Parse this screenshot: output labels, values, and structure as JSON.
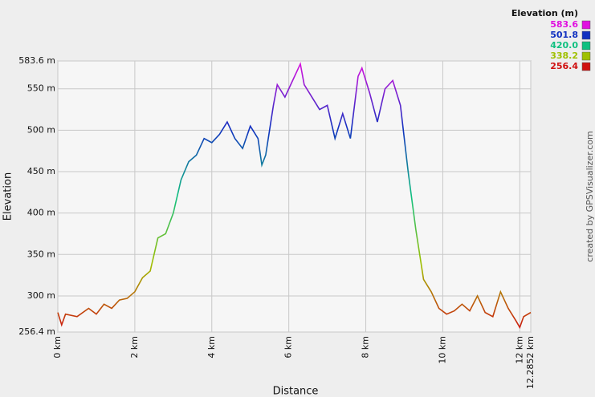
{
  "chart_data": {
    "type": "line",
    "x_label": "Distance",
    "y_label": "Elevation",
    "credit": "created by GPSVisualizer.com",
    "x": [
      0,
      0.1,
      0.2,
      0.5,
      0.8,
      1.0,
      1.2,
      1.4,
      1.6,
      1.8,
      2.0,
      2.2,
      2.4,
      2.6,
      2.8,
      3.0,
      3.2,
      3.4,
      3.6,
      3.8,
      4.0,
      4.2,
      4.4,
      4.6,
      4.8,
      5.0,
      5.2,
      5.3,
      5.4,
      5.6,
      5.7,
      5.9,
      6.1,
      6.3,
      6.4,
      6.6,
      6.8,
      7.0,
      7.2,
      7.4,
      7.6,
      7.8,
      7.9,
      8.1,
      8.3,
      8.5,
      8.7,
      8.9,
      9.1,
      9.3,
      9.5,
      9.7,
      9.9,
      10.1,
      10.3,
      10.5,
      10.7,
      10.9,
      11.1,
      11.3,
      11.5,
      11.7,
      11.9,
      12.0,
      12.1,
      12.2852
    ],
    "values": [
      280,
      265,
      278,
      275,
      285,
      278,
      290,
      285,
      295,
      297,
      305,
      322,
      330,
      370,
      375,
      400,
      440,
      462,
      470,
      490,
      485,
      495,
      510,
      490,
      478,
      505,
      490,
      458,
      470,
      530,
      555,
      540,
      560,
      580,
      555,
      540,
      525,
      530,
      490,
      520,
      490,
      565,
      575,
      545,
      510,
      550,
      560,
      530,
      450,
      380,
      320,
      305,
      285,
      278,
      282,
      290,
      282,
      300,
      280,
      275,
      305,
      285,
      270,
      262,
      275,
      280
    ],
    "xlim": [
      0,
      12.2852
    ],
    "xticks": [
      {
        "value": 0,
        "label": "0 km"
      },
      {
        "value": 2,
        "label": "2 km"
      },
      {
        "value": 4,
        "label": "4 km"
      },
      {
        "value": 6,
        "label": "6 km"
      },
      {
        "value": 8,
        "label": "8 km"
      },
      {
        "value": 10,
        "label": "10 km"
      },
      {
        "value": 12,
        "label": "12 km"
      },
      {
        "value": 12.2852,
        "label": "12.2852 km"
      }
    ],
    "ylim": [
      256.4,
      583.6
    ],
    "yticks": [
      {
        "value": 256.4,
        "label": "256.4 m"
      },
      {
        "value": 300,
        "label": "300 m"
      },
      {
        "value": 350,
        "label": "350 m"
      },
      {
        "value": 400,
        "label": "400 m"
      },
      {
        "value": 450,
        "label": "450 m"
      },
      {
        "value": 500,
        "label": "500 m"
      },
      {
        "value": 550,
        "label": "550 m"
      },
      {
        "value": 583.6,
        "label": "583.6 m"
      }
    ],
    "grid": true,
    "colorbar": {
      "title": "Elevation (m)",
      "ticks": [
        583.6,
        501.8,
        {
          "value": 420,
          "label": "420.0"
        },
        338.2,
        256.4
      ],
      "colors": [
        "#e010e0",
        "#1030c0",
        "#10c080",
        "#a0c000",
        "#d01010"
      ]
    }
  }
}
